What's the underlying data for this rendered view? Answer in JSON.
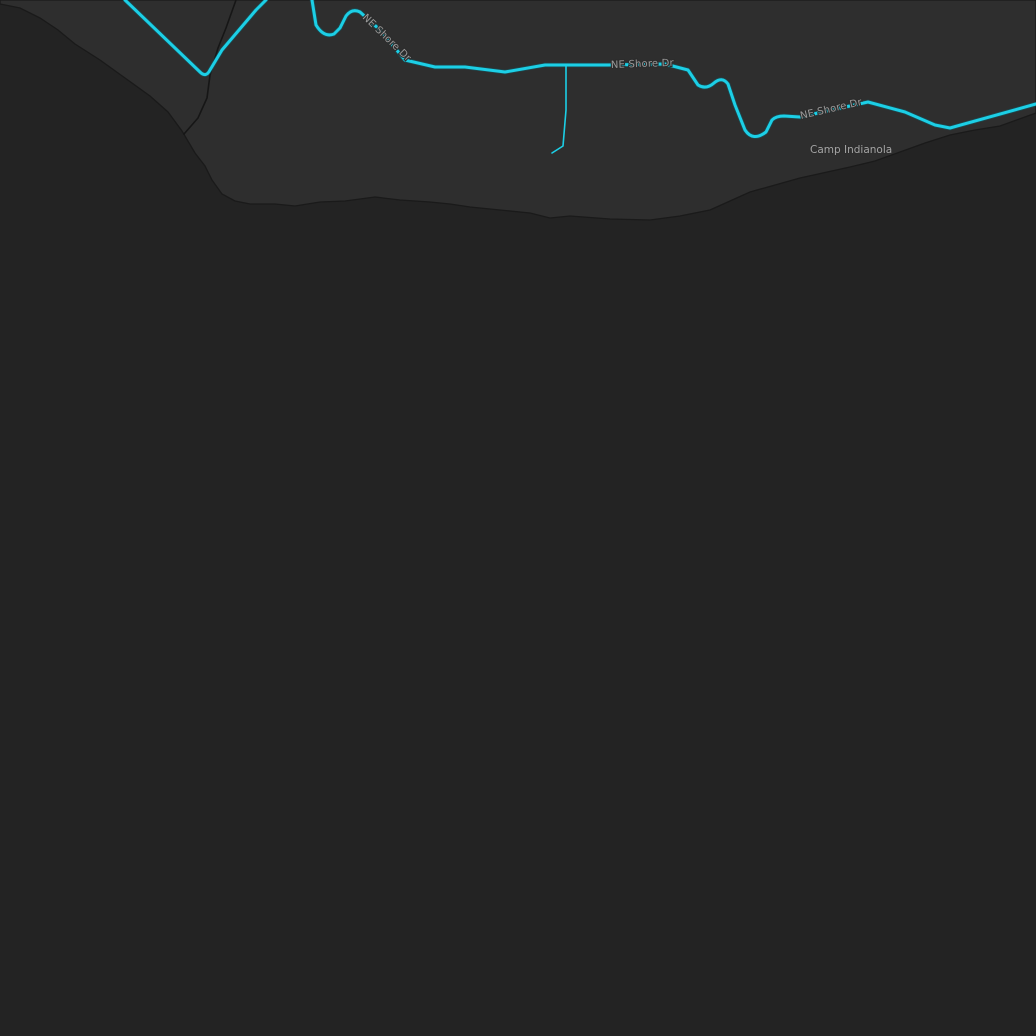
{
  "colors": {
    "water": "#232323",
    "land": "#2e2e2e",
    "shoreline": "#1a1a1a",
    "road_primary": "#1ccfe6",
    "road_outline": "#0f6d78",
    "minor_road": "#151515",
    "label_text": "#9a9a9a"
  },
  "roads": {
    "shore_drive_labels": [
      "NE Shore Dr",
      "NE Shore Dr",
      "NE Shore Dr"
    ]
  },
  "places": {
    "camp_label": "Camp Indianola"
  }
}
